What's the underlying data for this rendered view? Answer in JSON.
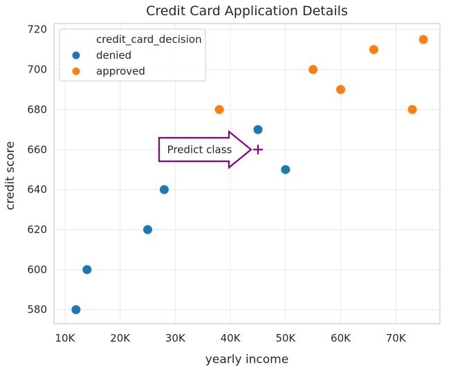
{
  "chart_data": {
    "type": "scatter",
    "title": "Credit Card Application Details",
    "xlabel": "yearly income",
    "ylabel": "credit score",
    "xlim": [
      8000,
      78000
    ],
    "ylim": [
      573,
      723
    ],
    "x_ticks": [
      10000,
      20000,
      30000,
      40000,
      50000,
      60000,
      70000
    ],
    "x_tick_labels": [
      "10K",
      "20K",
      "30K",
      "40K",
      "50K",
      "60K",
      "70K"
    ],
    "y_ticks": [
      580,
      600,
      620,
      640,
      660,
      680,
      700,
      720
    ],
    "y_tick_labels": [
      "580",
      "600",
      "620",
      "640",
      "660",
      "680",
      "700",
      "720"
    ],
    "grid": true,
    "legend": {
      "title": "credit_card_decision",
      "placement": "top-left"
    },
    "series": [
      {
        "name": "denied",
        "color": "#1f77b4",
        "points": [
          [
            12000,
            580
          ],
          [
            14000,
            600
          ],
          [
            25000,
            620
          ],
          [
            28000,
            640
          ],
          [
            45000,
            670
          ],
          [
            50000,
            650
          ]
        ]
      },
      {
        "name": "approved",
        "color": "#ff7f0e",
        "points": [
          [
            38000,
            680
          ],
          [
            55000,
            700
          ],
          [
            60000,
            690
          ],
          [
            66000,
            710
          ],
          [
            73000,
            680
          ],
          [
            75000,
            715
          ]
        ]
      }
    ],
    "annotation": {
      "text": "Predict class",
      "color": "#800080",
      "target": [
        45000,
        660
      ],
      "marker": "plus"
    }
  }
}
